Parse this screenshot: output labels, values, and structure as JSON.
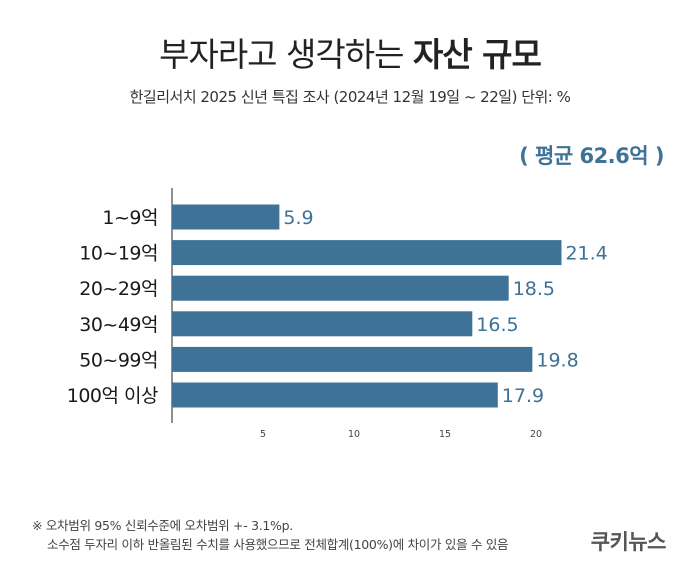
{
  "header": {
    "title_light": "부자라고 생각하는",
    "title_bold": "자산 규모",
    "subtitle": "한길리서치 2025 신년 특집 조사 (2024년 12월 19일 ~ 22일) 단위: %",
    "average": "( 평균 62.6억 )"
  },
  "chart_data": {
    "type": "bar",
    "orientation": "horizontal",
    "categories": [
      "1~9억",
      "10~19억",
      "20~29억",
      "30~49억",
      "50~99억",
      "100억 이상"
    ],
    "values": [
      5.9,
      21.4,
      18.5,
      16.5,
      19.8,
      17.9
    ],
    "value_labels": [
      "5.9",
      "21.4",
      "18.5",
      "16.5",
      "19.8",
      "17.9"
    ],
    "xticks": [
      "5",
      "10",
      "15",
      "20"
    ],
    "xtick_values": [
      5,
      10,
      15,
      20
    ],
    "xlim": [
      0,
      22
    ],
    "grid": false,
    "bar_color": "#3e7296"
  },
  "footnote": {
    "line1": "※ 오차범위 95% 신뢰수준에 오차범위 +- 3.1%p.",
    "line2": "소수점 두자리 이하 반올림된 수치를 사용했으므로 전체합계(100%)에 차이가 있을 수 있음"
  },
  "brand": {
    "logo": "쿠키뉴스"
  }
}
